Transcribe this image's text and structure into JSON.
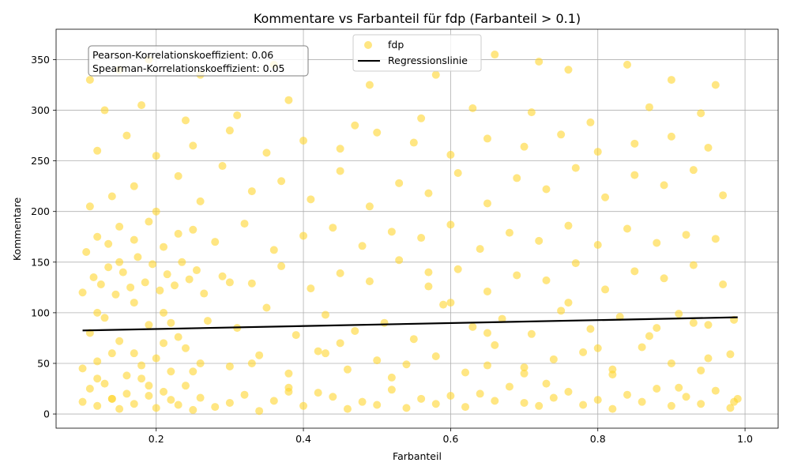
{
  "chart_data": {
    "type": "scatter",
    "title": "Kommentare vs Farbanteil für fdp (Farbanteil > 0.1)",
    "xlabel": "Farbanteil",
    "ylabel": "Kommentare",
    "xlim": [
      0.064,
      1.045
    ],
    "ylim": [
      -14,
      380
    ],
    "xticks": [
      0.2,
      0.4,
      0.6,
      0.8,
      1.0
    ],
    "xtick_labels": [
      "0.2",
      "0.4",
      "0.6",
      "0.8",
      "1.0"
    ],
    "yticks": [
      0,
      50,
      100,
      150,
      200,
      250,
      300,
      350
    ],
    "ytick_labels": [
      "0",
      "50",
      "100",
      "150",
      "200",
      "250",
      "300",
      "350"
    ],
    "grid": true,
    "legend_placement": "top-center",
    "stats_box": [
      "Pearson-Korrelationskoeffizient: 0.06",
      "Spearman-Korrelationskoeffizient: 0.05"
    ],
    "series": [
      {
        "name": "fdp",
        "kind": "scatter",
        "color": "#FFD52E",
        "opacity": 0.6,
        "x": [
          0.1,
          0.11,
          0.12,
          0.13,
          0.14,
          0.15,
          0.16,
          0.17,
          0.18,
          0.19,
          0.2,
          0.21,
          0.22,
          0.23,
          0.24,
          0.25,
          0.26,
          0.28,
          0.3,
          0.32,
          0.34,
          0.36,
          0.38,
          0.4,
          0.42,
          0.44,
          0.46,
          0.48,
          0.5,
          0.52,
          0.54,
          0.56,
          0.58,
          0.6,
          0.62,
          0.64,
          0.66,
          0.68,
          0.7,
          0.72,
          0.74,
          0.76,
          0.78,
          0.8,
          0.82,
          0.84,
          0.86,
          0.88,
          0.9,
          0.92,
          0.94,
          0.96,
          0.98,
          0.99,
          0.1,
          0.12,
          0.14,
          0.16,
          0.18,
          0.2,
          0.22,
          0.24,
          0.26,
          0.3,
          0.34,
          0.38,
          0.42,
          0.46,
          0.5,
          0.54,
          0.58,
          0.62,
          0.66,
          0.7,
          0.74,
          0.78,
          0.82,
          0.86,
          0.9,
          0.94,
          0.98,
          0.11,
          0.13,
          0.15,
          0.17,
          0.19,
          0.21,
          0.23,
          0.27,
          0.31,
          0.35,
          0.39,
          0.43,
          0.47,
          0.51,
          0.55,
          0.59,
          0.63,
          0.67,
          0.71,
          0.75,
          0.79,
          0.83,
          0.87,
          0.91,
          0.95,
          0.985,
          0.1,
          0.115,
          0.125,
          0.135,
          0.145,
          0.155,
          0.165,
          0.175,
          0.185,
          0.195,
          0.205,
          0.215,
          0.225,
          0.235,
          0.245,
          0.255,
          0.265,
          0.29,
          0.33,
          0.37,
          0.41,
          0.45,
          0.49,
          0.53,
          0.57,
          0.61,
          0.65,
          0.69,
          0.73,
          0.77,
          0.81,
          0.85,
          0.89,
          0.93,
          0.97,
          0.105,
          0.12,
          0.135,
          0.15,
          0.17,
          0.19,
          0.21,
          0.23,
          0.25,
          0.28,
          0.32,
          0.36,
          0.4,
          0.44,
          0.48,
          0.52,
          0.56,
          0.6,
          0.64,
          0.68,
          0.72,
          0.76,
          0.8,
          0.84,
          0.88,
          0.92,
          0.96,
          0.11,
          0.14,
          0.17,
          0.2,
          0.23,
          0.26,
          0.29,
          0.33,
          0.37,
          0.41,
          0.45,
          0.49,
          0.53,
          0.57,
          0.61,
          0.65,
          0.69,
          0.73,
          0.77,
          0.81,
          0.85,
          0.89,
          0.93,
          0.97,
          0.12,
          0.16,
          0.2,
          0.25,
          0.3,
          0.35,
          0.4,
          0.45,
          0.5,
          0.55,
          0.6,
          0.65,
          0.7,
          0.75,
          0.8,
          0.85,
          0.9,
          0.95,
          0.13,
          0.18,
          0.24,
          0.31,
          0.38,
          0.47,
          0.56,
          0.63,
          0.71,
          0.79,
          0.87,
          0.94,
          0.11,
          0.15,
          0.19,
          0.26,
          0.36,
          0.49,
          0.58,
          0.66,
          0.72,
          0.76,
          0.84,
          0.9,
          0.96,
          0.12,
          0.17,
          0.22,
          0.33,
          0.45,
          0.6,
          0.7,
          0.8,
          0.88,
          0.95,
          0.14,
          0.19,
          0.25,
          0.38,
          0.52,
          0.65,
          0.73,
          0.82,
          0.91,
          0.985,
          0.12,
          0.15,
          0.21,
          0.3,
          0.43,
          0.57,
          0.65,
          0.76,
          0.93
        ],
        "y": [
          12,
          25,
          8,
          30,
          15,
          5,
          20,
          10,
          35,
          18,
          6,
          22,
          14,
          9,
          28,
          4,
          16,
          7,
          11,
          19,
          3,
          13,
          26,
          8,
          21,
          17,
          5,
          12,
          9,
          24,
          6,
          15,
          10,
          18,
          7,
          20,
          13,
          27,
          11,
          8,
          16,
          22,
          9,
          14,
          5,
          19,
          12,
          25,
          8,
          17,
          10,
          23,
          6,
          15,
          45,
          52,
          60,
          38,
          48,
          55,
          42,
          65,
          50,
          47,
          58,
          40,
          62,
          44,
          53,
          49,
          57,
          41,
          68,
          46,
          54,
          61,
          39,
          66,
          50,
          43,
          59,
          80,
          95,
          72,
          110,
          88,
          100,
          76,
          92,
          85,
          105,
          78,
          98,
          82,
          90,
          74,
          108,
          86,
          94,
          79,
          102,
          84,
          96,
          77,
          99,
          88,
          93,
          120,
          135,
          128,
          145,
          118,
          140,
          125,
          155,
          130,
          148,
          122,
          138,
          127,
          150,
          133,
          142,
          119,
          136,
          129,
          146,
          124,
          139,
          131,
          152,
          126,
          143,
          121,
          137,
          132,
          149,
          123,
          141,
          134,
          147,
          128,
          160,
          175,
          168,
          185,
          172,
          190,
          165,
          178,
          182,
          170,
          188,
          162,
          176,
          184,
          166,
          180,
          174,
          187,
          163,
          179,
          171,
          186,
          167,
          183,
          169,
          177,
          173,
          205,
          215,
          225,
          200,
          235,
          210,
          245,
          220,
          230,
          212,
          240,
          205,
          228,
          218,
          238,
          208,
          233,
          222,
          243,
          214,
          236,
          226,
          241,
          216,
          260,
          275,
          255,
          265,
          280,
          258,
          270,
          262,
          278,
          268,
          256,
          272,
          264,
          276,
          259,
          267,
          274,
          263,
          300,
          305,
          290,
          295,
          310,
          285,
          292,
          302,
          298,
          288,
          303,
          297,
          330,
          340,
          350,
          335,
          345,
          325,
          335,
          355,
          348,
          340,
          345,
          330,
          325,
          35,
          60,
          90,
          50,
          70,
          110,
          40,
          65,
          85,
          55,
          15,
          28,
          42,
          22,
          36,
          48,
          30,
          44,
          26,
          12,
          100,
          150,
          70,
          130,
          60,
          140,
          80,
          110,
          90
        ]
      },
      {
        "name": "Regressionslinie",
        "kind": "line",
        "color": "#000000",
        "x": [
          0.1,
          0.99
        ],
        "y": [
          82.5,
          95.5
        ]
      }
    ]
  }
}
